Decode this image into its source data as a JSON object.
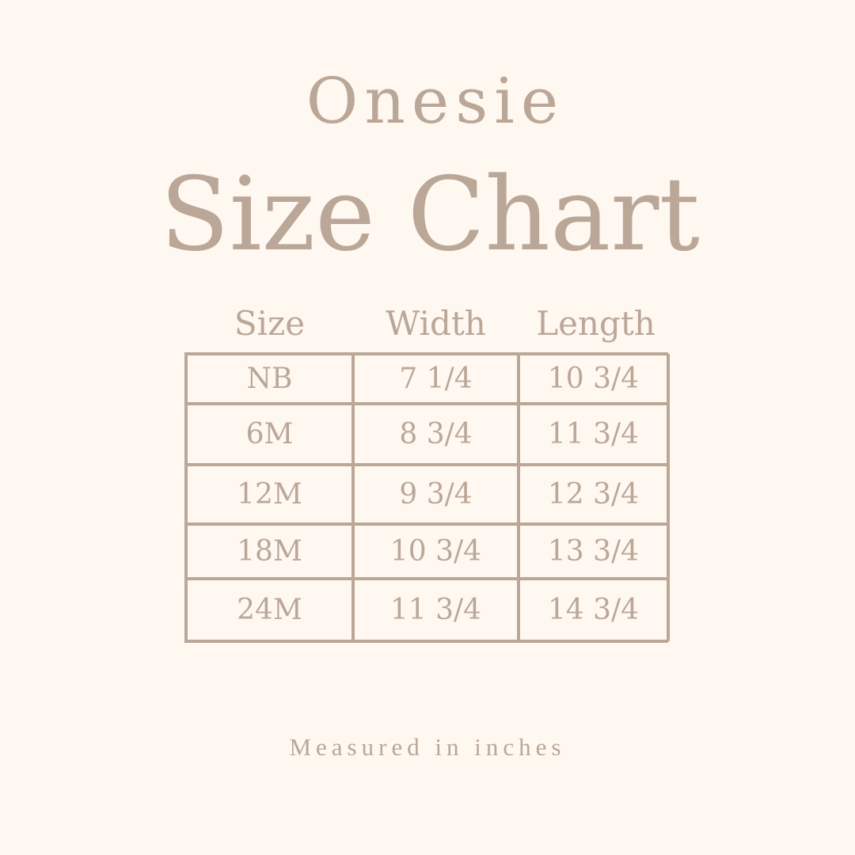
{
  "header": {
    "subtitle": "Onesie",
    "title": "Size Chart"
  },
  "table": {
    "columns": [
      "Size",
      "Width",
      "Length"
    ],
    "rows": [
      [
        "NB",
        "7 1/4",
        "10 3/4"
      ],
      [
        "6M",
        "8 3/4",
        "11 3/4"
      ],
      [
        "12M",
        "9 3/4",
        "12 3/4"
      ],
      [
        "18M",
        "10 3/4",
        "13 3/4"
      ],
      [
        "24M",
        "11 3/4",
        "14 3/4"
      ]
    ]
  },
  "footer": {
    "note": "Measured in inches"
  },
  "colors": {
    "background": "#fef8f1",
    "text": "#bba797",
    "lines": "#bba797"
  }
}
